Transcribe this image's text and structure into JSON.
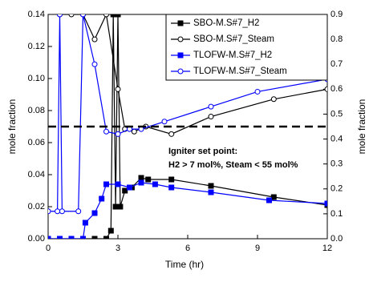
{
  "chart_data": {
    "type": "line",
    "xlabel": "Time (hr)",
    "ylabel": "mole fraction",
    "y2label": "mole fraction",
    "xlim": [
      0,
      12
    ],
    "xticks": [
      0,
      3,
      6,
      9,
      12
    ],
    "ylim": [
      0,
      0.14
    ],
    "yticks": [
      {
        "value": 0,
        "label": "0.00"
      },
      {
        "value": 0.02,
        "label": "0.02"
      },
      {
        "value": 0.04,
        "label": "0.04"
      },
      {
        "value": 0.06,
        "label": "0.06"
      },
      {
        "value": 0.08,
        "label": "0.08"
      },
      {
        "value": 0.1,
        "label": "0.10"
      },
      {
        "value": 0.12,
        "label": "0.12"
      },
      {
        "value": 0.14,
        "label": "0.14"
      }
    ],
    "y2lim": [
      0,
      0.9
    ],
    "y2ticks": [
      {
        "value": 0,
        "label": "0.0"
      },
      0.1,
      0.2,
      0.3,
      0.4,
      0.5,
      0.6,
      0.7,
      0.8,
      0.9
    ],
    "reference_line": 0.07,
    "annotation": [
      "Igniter set point:",
      "H2 > 7 mol%,  Steam < 55 mol%"
    ],
    "series": [
      {
        "name": "SBO-M.S#7_H2",
        "color": "#000000",
        "marker": "square",
        "filled": true,
        "axis": "y",
        "x": [
          0,
          0.5,
          1,
          1.5,
          2,
          2.5,
          2.7,
          2.8,
          2.9,
          3.0,
          3.1,
          3.3,
          3.6,
          4.0,
          4.3,
          5.3,
          7.0,
          9.7,
          12
        ],
        "values": [
          0,
          0,
          0,
          0,
          0,
          0,
          0.005,
          0.14,
          0.02,
          0.14,
          0.02,
          0.03,
          0.032,
          0.038,
          0.037,
          0.037,
          0.033,
          0.026,
          0.021
        ]
      },
      {
        "name": "SBO-M.S#7_Steam",
        "color": "#000000",
        "marker": "circle",
        "filled": false,
        "axis": "y2",
        "x": [
          0.5,
          1,
          1.5,
          2,
          2.5,
          3,
          3.3,
          3.7,
          4.2,
          5.3,
          7,
          9.7,
          12
        ],
        "values": [
          0.9,
          0.9,
          0.9,
          0.8,
          0.9,
          0.6,
          0.44,
          0.43,
          0.45,
          0.42,
          0.49,
          0.56,
          0.6
        ]
      },
      {
        "name": "TLOFW-M.S#7_H2",
        "color": "#0000ff",
        "marker": "square",
        "filled": true,
        "axis": "y",
        "x": [
          0,
          0.5,
          1,
          1.5,
          1.6,
          2,
          2.3,
          2.5,
          3.0,
          3.5,
          4.0,
          4.6,
          5.3,
          7,
          9.5,
          12
        ],
        "values": [
          0,
          0,
          0,
          0,
          0.01,
          0.016,
          0.025,
          0.034,
          0.034,
          0.032,
          0.035,
          0.034,
          0.032,
          0.029,
          0.024,
          0.022
        ]
      },
      {
        "name": "TLOFW-M.S#7_Steam",
        "color": "#0000ff",
        "marker": "circle",
        "filled": false,
        "axis": "y2",
        "x": [
          0,
          0.4,
          0.5,
          0.6,
          1.3,
          1.5,
          2,
          2.5,
          3,
          3.5,
          4,
          5,
          7,
          9,
          12
        ],
        "values": [
          0.11,
          0.11,
          0.9,
          0.11,
          0.11,
          0.9,
          0.7,
          0.43,
          0.42,
          0.44,
          0.44,
          0.47,
          0.53,
          0.59,
          0.64
        ]
      }
    ]
  }
}
